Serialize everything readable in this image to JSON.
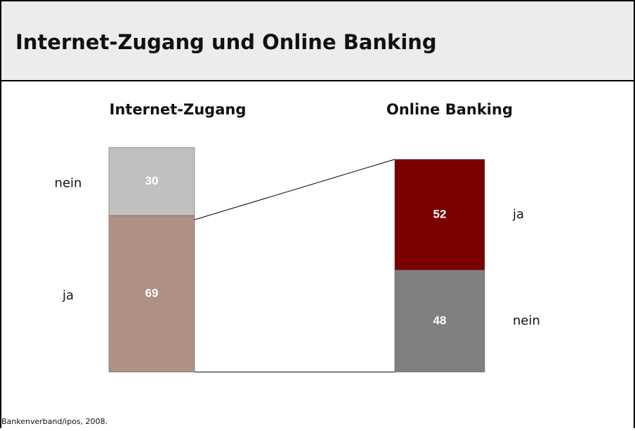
{
  "title": "Internet-Zugang und Online Banking",
  "source": "Bankenverband/ipos, 2008.",
  "chart_data": [
    {
      "type": "stacked-bar",
      "title": "Internet-Zugang",
      "series": [
        {
          "name": "ja",
          "color": "#b09084",
          "values": [
            69
          ]
        },
        {
          "name": "nein",
          "color": "#c0c0c0",
          "values": [
            30
          ]
        }
      ]
    },
    {
      "type": "stacked-bar",
      "title": "Online Banking",
      "series": [
        {
          "name": "nein",
          "color": "#808080",
          "values": [
            48
          ]
        },
        {
          "name": "ja",
          "color": "#7a0000",
          "values": [
            52
          ]
        }
      ]
    }
  ]
}
